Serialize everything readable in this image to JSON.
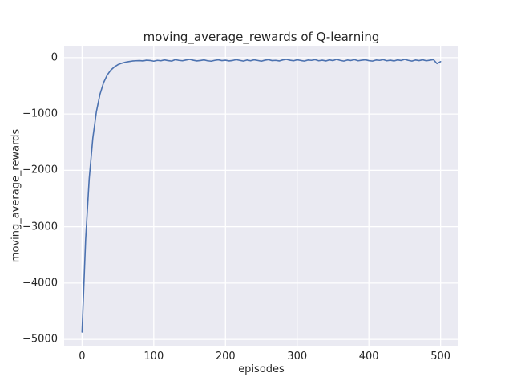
{
  "chart_data": {
    "type": "line",
    "title": "moving_average_rewards of Q-learning",
    "xlabel": "episodes",
    "ylabel": "moving_average_rewards",
    "xlim": [
      -25,
      525
    ],
    "ylim": [
      -5112,
      212
    ],
    "grid": true,
    "legend": null,
    "x_ticks": [
      0,
      100,
      200,
      300,
      400,
      500
    ],
    "x_tick_labels": [
      "0",
      "100",
      "200",
      "300",
      "400",
      "500"
    ],
    "y_ticks": [
      0,
      -1000,
      -2000,
      -3000,
      -4000,
      -5000
    ],
    "y_tick_labels": [
      "0",
      "−1000",
      "−2000",
      "−3000",
      "−4000",
      "−5000"
    ],
    "series": [
      {
        "name": "moving_average_rewards",
        "x": [
          0,
          5,
          10,
          15,
          20,
          25,
          30,
          35,
          40,
          45,
          50,
          55,
          60,
          65,
          70,
          75,
          80,
          85,
          90,
          95,
          100,
          105,
          110,
          115,
          120,
          125,
          130,
          135,
          140,
          145,
          150,
          155,
          160,
          165,
          170,
          175,
          180,
          185,
          190,
          195,
          200,
          205,
          210,
          215,
          220,
          225,
          230,
          235,
          240,
          245,
          250,
          255,
          260,
          265,
          270,
          275,
          280,
          285,
          290,
          295,
          300,
          305,
          310,
          315,
          320,
          325,
          330,
          335,
          340,
          345,
          350,
          355,
          360,
          365,
          370,
          375,
          380,
          385,
          390,
          395,
          400,
          405,
          410,
          415,
          420,
          425,
          430,
          435,
          440,
          445,
          450,
          455,
          460,
          465,
          470,
          475,
          480,
          485,
          490,
          495,
          500
        ],
        "y": [
          -4870,
          -3230,
          -2150,
          -1430,
          -960,
          -650,
          -445,
          -310,
          -222,
          -165,
          -125,
          -100,
          -82,
          -70,
          -60,
          -55,
          -52,
          -58,
          -45,
          -50,
          -62,
          -48,
          -55,
          -40,
          -52,
          -60,
          -35,
          -48,
          -55,
          -42,
          -30,
          -45,
          -58,
          -50,
          -40,
          -55,
          -62,
          -48,
          -38,
          -52,
          -45,
          -58,
          -50,
          -35,
          -48,
          -60,
          -42,
          -55,
          -38,
          -50,
          -62,
          -45,
          -35,
          -52,
          -48,
          -58,
          -40,
          -30,
          -45,
          -55,
          -38,
          -50,
          -60,
          -42,
          -48,
          -35,
          -55,
          -45,
          -58,
          -40,
          -52,
          -30,
          -48,
          -60,
          -42,
          -50,
          -35,
          -55,
          -45,
          -38,
          -52,
          -60,
          -42,
          -48,
          -35,
          -55,
          -45,
          -58,
          -40,
          -50,
          -30,
          -48,
          -60,
          -42,
          -52,
          -38,
          -55,
          -45,
          -35,
          -105,
          -70
        ]
      }
    ],
    "colors": {
      "line": "#4c72b0",
      "plot_background": "#eaeaf2",
      "grid": "#ffffff",
      "text": "#262626",
      "figure_background": "#ffffff"
    }
  }
}
